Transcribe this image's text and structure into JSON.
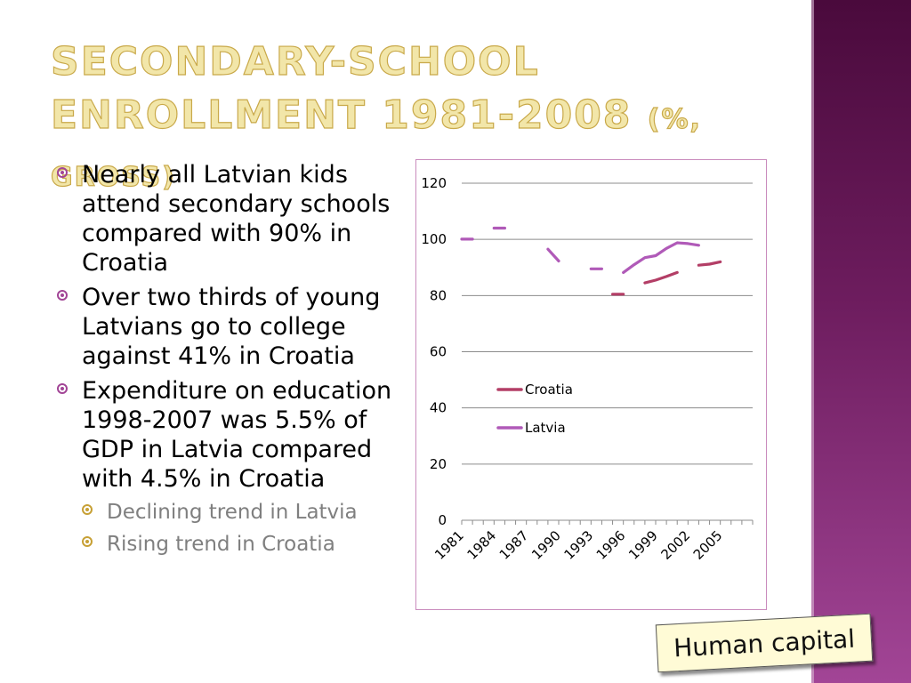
{
  "slide": {
    "title_line1": "Secondary-school",
    "title_line2": "enrollment 1981-2008",
    "title_sub": "(%, gross)",
    "bullets": [
      "Nearly all Latvian kids attend secondary schools compared with 90% in Croatia",
      "Over two thirds of young Latvians go to college against 41% in Croatia",
      "Expenditure on education 1998-2007 was 5.5% of GDP in Latvia compared with 4.5% in Croatia"
    ],
    "sub_bullets": [
      "Declining trend in Latvia",
      "Rising trend in Croatia"
    ],
    "tag_label": "Human capital",
    "colors": {
      "band": "#6e1d5f",
      "title": "#f2e6a9",
      "bullet": "#a24596",
      "sub_bullet": "#c7a035"
    }
  },
  "chart_data": {
    "type": "line",
    "title": "",
    "xlabel": "",
    "ylabel": "",
    "x": [
      1981,
      1982,
      1983,
      1984,
      1985,
      1986,
      1987,
      1988,
      1989,
      1990,
      1991,
      1992,
      1993,
      1994,
      1995,
      1996,
      1997,
      1998,
      1999,
      2000,
      2001,
      2002,
      2003,
      2004,
      2005,
      2006,
      2007,
      2008
    ],
    "x_tick_labels": [
      "1981",
      "1984",
      "1987",
      "1990",
      "1993",
      "1996",
      "1999",
      "2002",
      "2005"
    ],
    "y_ticks": [
      0,
      20,
      40,
      60,
      80,
      100,
      120
    ],
    "ylim": [
      0,
      120
    ],
    "grid": true,
    "legend_position": "middle-left",
    "series": [
      {
        "name": "Croatia",
        "color": "#b33e66",
        "values": [
          null,
          null,
          null,
          null,
          null,
          null,
          null,
          null,
          null,
          null,
          null,
          null,
          null,
          null,
          80.5,
          80.5,
          null,
          84.5,
          85.5,
          86.8,
          88.2,
          null,
          90.8,
          91.2,
          92.0,
          null,
          null,
          null
        ]
      },
      {
        "name": "Latvia",
        "color": "#b05ab8",
        "values": [
          100.1,
          100.1,
          null,
          104.0,
          104.0,
          null,
          null,
          null,
          96.5,
          92.3,
          null,
          null,
          89.5,
          89.5,
          null,
          88.2,
          91.0,
          93.5,
          94.2,
          96.8,
          98.8,
          98.5,
          97.9,
          null,
          null,
          null,
          null,
          null
        ]
      }
    ]
  }
}
